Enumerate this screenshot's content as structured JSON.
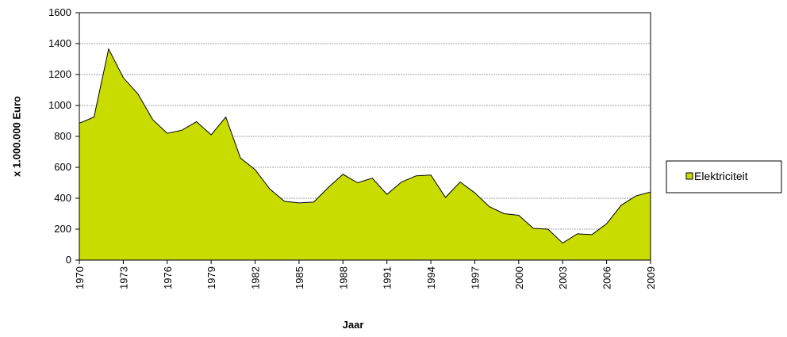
{
  "chart_data": {
    "type": "area",
    "y_label": "x 1.000.000 Euro",
    "x_label": "Jaar",
    "x": [
      1970,
      1971,
      1972,
      1973,
      1974,
      1975,
      1976,
      1977,
      1978,
      1979,
      1980,
      1981,
      1982,
      1983,
      1984,
      1985,
      1986,
      1987,
      1988,
      1989,
      1990,
      1991,
      1992,
      1993,
      1994,
      1995,
      1996,
      1997,
      1998,
      1999,
      2000,
      2001,
      2002,
      2003,
      2004,
      2005,
      2006,
      2007,
      2008,
      2009
    ],
    "series": [
      {
        "name": "Elektriciteit",
        "color": "#c8dc00",
        "values": [
          885,
          925,
          1365,
          1180,
          1075,
          910,
          820,
          840,
          895,
          810,
          925,
          660,
          585,
          460,
          380,
          370,
          375,
          470,
          555,
          500,
          530,
          425,
          505,
          545,
          550,
          405,
          505,
          435,
          345,
          300,
          290,
          205,
          200,
          110,
          170,
          165,
          235,
          355,
          415,
          440
        ]
      }
    ],
    "xlim": [
      1970,
      2009
    ],
    "xticks": [
      1970,
      1973,
      1976,
      1979,
      1982,
      1985,
      1988,
      1991,
      1994,
      1997,
      2000,
      2003,
      2006,
      2009
    ],
    "ylim": [
      0,
      1600
    ],
    "yticks": [
      0,
      200,
      400,
      600,
      800,
      1000,
      1200,
      1400,
      1600
    ],
    "grid": true,
    "legend": "right"
  }
}
